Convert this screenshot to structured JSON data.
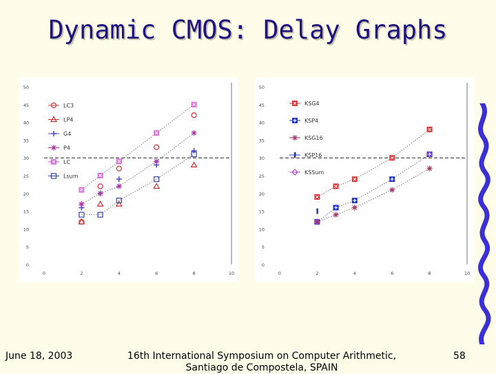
{
  "slide": {
    "title": "Dynamic CMOS: Delay Graphs",
    "footer_date": "June 18, 2003",
    "footer_conference_line1": "16th International Symposium on Computer Arithmetic,",
    "footer_conference_line2": "Santiago de Compostela, SPAIN",
    "page_number": "58"
  },
  "chart_data": [
    {
      "type": "scatter",
      "title": "",
      "xlabel": "",
      "ylabel": "",
      "xlim": [
        0,
        10
      ],
      "ylim": [
        0,
        50
      ],
      "x_ticks": [
        "0",
        "2",
        "4",
        "6",
        "8",
        "10"
      ],
      "y_ticks": [
        "0",
        "5",
        "10",
        "15",
        "20",
        "25",
        "30",
        "35",
        "40",
        "45",
        "50"
      ],
      "reference_line_y": 30,
      "legend_position": "top-left",
      "series": [
        {
          "name": "LC3",
          "marker": "circle",
          "color": "#cc3333",
          "x": [
            2,
            3,
            4,
            6,
            8
          ],
          "y": [
            12,
            22,
            27,
            33,
            42
          ],
          "trend": false
        },
        {
          "name": "LP4",
          "marker": "triangle",
          "color": "#cc3333",
          "x": [
            2,
            3,
            4,
            6,
            8
          ],
          "y": [
            12,
            17,
            17,
            22,
            28
          ],
          "trend": false
        },
        {
          "name": "G4",
          "marker": "plus",
          "color": "#4444cc",
          "x": [
            2,
            3,
            4,
            6,
            8
          ],
          "y": [
            16,
            20,
            24,
            28,
            32
          ],
          "trend": false
        },
        {
          "name": "P4",
          "marker": "asterisk",
          "color": "#aa33aa",
          "x": [
            2,
            3,
            4,
            6,
            8
          ],
          "y": [
            17,
            20,
            22,
            29,
            37
          ],
          "trend": true
        },
        {
          "name": "LC",
          "marker": "square-x",
          "color": "#cc44cc",
          "x": [
            2,
            3,
            4,
            6,
            8
          ],
          "y": [
            21,
            25,
            29,
            37,
            45
          ],
          "trend": true
        },
        {
          "name": "Lsum",
          "marker": "square",
          "color": "#3344aa",
          "x": [
            2,
            3,
            4,
            6,
            8
          ],
          "y": [
            14,
            14,
            18,
            24,
            31
          ],
          "trend": true
        }
      ]
    },
    {
      "type": "scatter",
      "title": "",
      "xlabel": "",
      "ylabel": "",
      "xlim": [
        0,
        10
      ],
      "ylim": [
        0,
        50
      ],
      "x_ticks": [
        "0",
        "2",
        "4",
        "6",
        "8",
        "10"
      ],
      "y_ticks": [
        "0",
        "5",
        "10",
        "15",
        "20",
        "25",
        "30",
        "35",
        "40",
        "45",
        "50"
      ],
      "reference_line_y": 30,
      "legend_position": "top-left",
      "series": [
        {
          "name": "KSG4",
          "marker": "filled-square-x",
          "color": "#dd3333",
          "x": [
            2,
            3,
            4,
            6,
            8
          ],
          "y": [
            19,
            22,
            24,
            30,
            38
          ],
          "trend": true
        },
        {
          "name": "KSP4",
          "marker": "filled-square-plus",
          "color": "#2233cc",
          "x": [
            2,
            3,
            4,
            6,
            8
          ],
          "y": [
            12,
            16,
            18,
            24,
            31
          ],
          "trend": true
        },
        {
          "name": "KSG16",
          "marker": "asterisk",
          "color": "#aa3366",
          "x": [
            2,
            3,
            4,
            6,
            8
          ],
          "y": [
            12,
            14,
            16,
            21,
            27
          ],
          "trend": true
        },
        {
          "name": "KSP16",
          "marker": "bar",
          "color": "#2233cc",
          "x": [
            2
          ],
          "y": [
            15
          ],
          "trend": false
        },
        {
          "name": "KSSum",
          "marker": "diamond",
          "color": "#aa44cc",
          "x": [
            2,
            8
          ],
          "y": [
            12,
            31
          ],
          "trend": false
        }
      ]
    }
  ]
}
